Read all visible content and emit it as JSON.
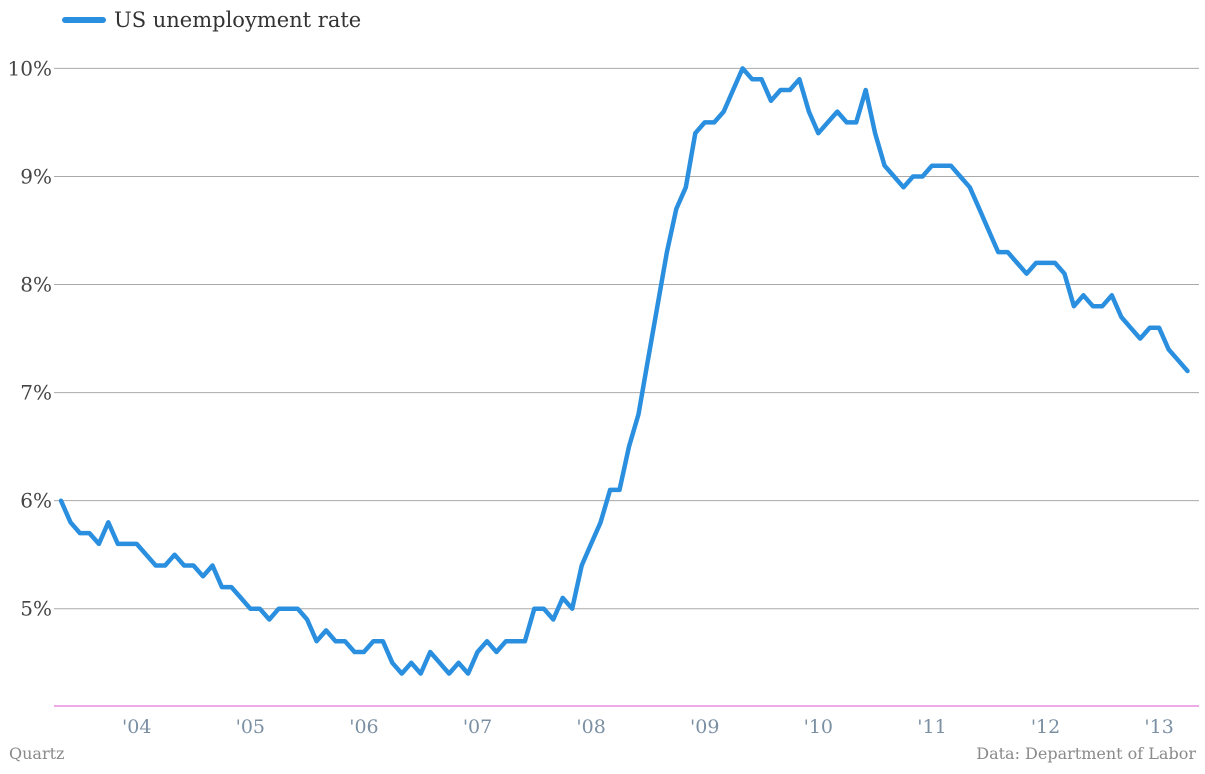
{
  "credit": "Quartz",
  "source": "Data: Department of Labor",
  "colors": {
    "line": "#2b8fe0",
    "grid": "#aaaaaa",
    "baseline": "#dd55cc",
    "xtick": "#7b8fa3",
    "ytick": "#444444"
  },
  "chart_data": {
    "type": "line",
    "title": "",
    "xlabel": "",
    "ylabel": "",
    "legend_position": "top-left",
    "grid": true,
    "ylim": [
      4.1,
      10.05
    ],
    "xlim": [
      "2003-05",
      "2013-05"
    ],
    "y_ticks": [
      5,
      6,
      7,
      8,
      9,
      10
    ],
    "y_tick_labels": [
      "5%",
      "6%",
      "7%",
      "8%",
      "9%",
      "10%"
    ],
    "x_tick_labels": [
      "'04",
      "'05",
      "'06",
      "'07",
      "'08",
      "'09",
      "'10",
      "'11",
      "'12",
      "'13"
    ],
    "x_tick_dates": [
      "2004-01",
      "2005-01",
      "2006-01",
      "2007-01",
      "2008-01",
      "2009-01",
      "2010-01",
      "2011-01",
      "2012-01",
      "2013-01"
    ],
    "series": [
      {
        "name": "US unemployment rate",
        "start": "2003-05",
        "frequency": "monthly",
        "values": [
          6.0,
          5.8,
          5.7,
          5.7,
          5.6,
          5.8,
          5.6,
          5.6,
          5.6,
          5.5,
          5.4,
          5.4,
          5.5,
          5.4,
          5.4,
          5.3,
          5.4,
          5.2,
          5.2,
          5.1,
          5.0,
          5.0,
          4.9,
          5.0,
          5.0,
          5.0,
          4.9,
          4.7,
          4.8,
          4.7,
          4.7,
          4.6,
          4.6,
          4.7,
          4.7,
          4.5,
          4.4,
          4.5,
          4.4,
          4.6,
          4.5,
          4.4,
          4.5,
          4.4,
          4.6,
          4.7,
          4.6,
          4.7,
          4.7,
          4.7,
          5.0,
          5.0,
          4.9,
          5.1,
          5.0,
          5.4,
          5.6,
          5.8,
          6.1,
          6.1,
          6.5,
          6.8,
          7.3,
          7.8,
          8.3,
          8.7,
          8.9,
          9.4,
          9.5,
          9.5,
          9.6,
          9.8,
          10.0,
          9.9,
          9.9,
          9.7,
          9.8,
          9.8,
          9.9,
          9.6,
          9.4,
          9.5,
          9.6,
          9.5,
          9.5,
          9.8,
          9.4,
          9.1,
          9.0,
          8.9,
          9.0,
          9.0,
          9.1,
          9.1,
          9.1,
          9.0,
          8.9,
          8.7,
          8.5,
          8.3,
          8.3,
          8.2,
          8.1,
          8.2,
          8.2,
          8.2,
          8.1,
          7.8,
          7.9,
          7.8,
          7.8,
          7.9,
          7.7,
          7.6,
          7.5,
          7.6,
          7.6,
          7.4,
          7.3,
          7.2
        ]
      }
    ]
  }
}
